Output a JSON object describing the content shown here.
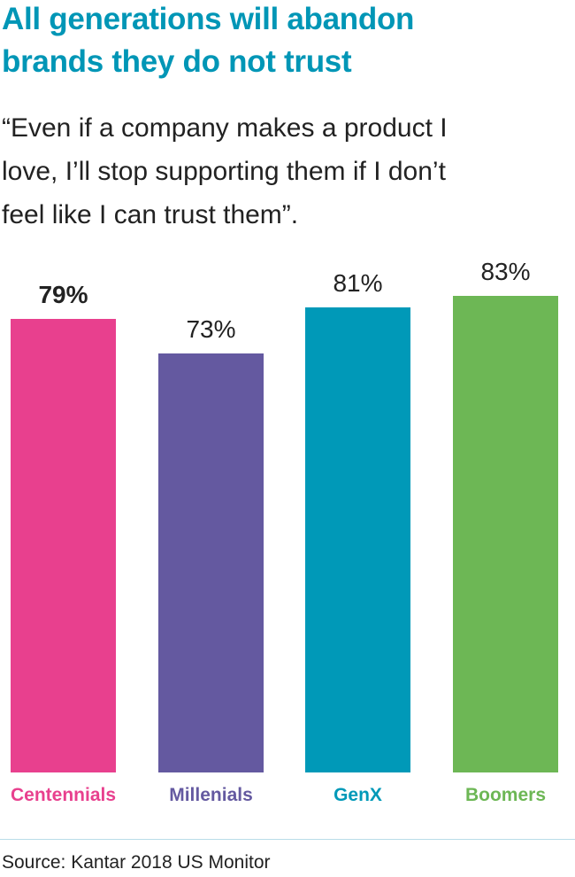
{
  "title_lines": [
    "All generations will abandon",
    "brands they do not trust"
  ],
  "quote_lines": [
    "“Even if a company makes a product I",
    "love, I’ll stop supporting them if I don’t",
    "feel like I can trust them”."
  ],
  "chart_data": {
    "type": "bar",
    "categories": [
      "Centennials",
      "Millenials",
      "GenX",
      "Boomers"
    ],
    "values": [
      79,
      73,
      81,
      83
    ],
    "value_labels": [
      "79%",
      "73%",
      "81%",
      "83%"
    ],
    "colors": [
      "#e8408e",
      "#6459a0",
      "#0099b8",
      "#6db755"
    ],
    "highlighted": "Centennials",
    "ylim": [
      0,
      100
    ],
    "grid": false
  },
  "source": "Source: Kantar 2018 US Monitor"
}
